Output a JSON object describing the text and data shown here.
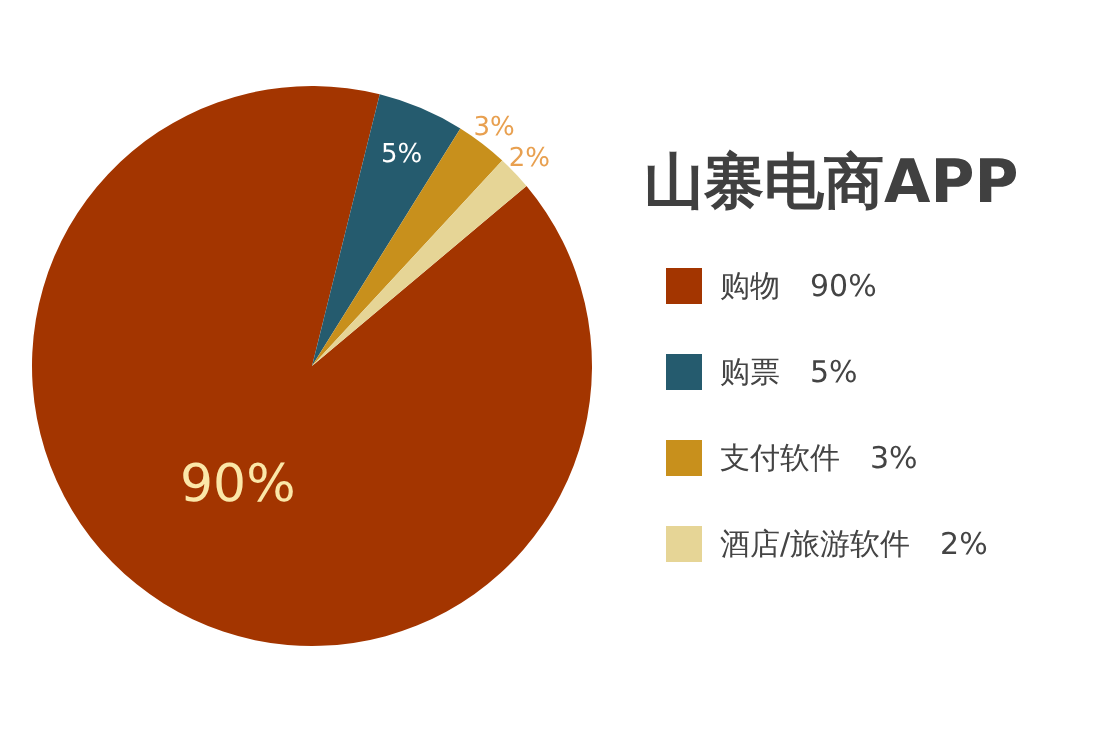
{
  "chart_data": {
    "type": "pie",
    "title": "山寨电商APP",
    "categories": [
      "购物",
      "购票",
      "支付软件",
      "酒店/旅游软件"
    ],
    "values": [
      90,
      5,
      3,
      2
    ],
    "value_labels": [
      "90%",
      "5%",
      "3%",
      "2%"
    ],
    "colors": [
      "#a33500",
      "#255b6e",
      "#c8901c",
      "#e6d596"
    ],
    "legend": "right"
  }
}
